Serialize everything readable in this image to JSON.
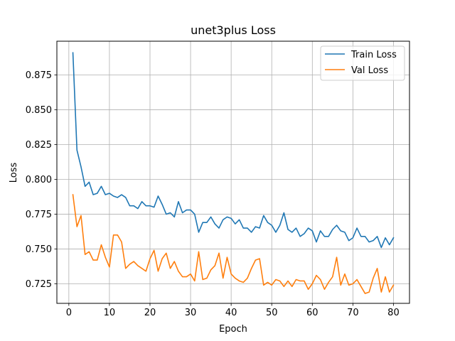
{
  "chart_data": {
    "type": "line",
    "title": "unet3plus Loss",
    "xlabel": "Epoch",
    "ylabel": "Loss",
    "xlim": [
      -2.95,
      83.95
    ],
    "ylim": [
      0.7109,
      0.8993
    ],
    "xticks": [
      0,
      10,
      20,
      30,
      40,
      50,
      60,
      70,
      80
    ],
    "yticks": [
      0.725,
      0.75,
      0.775,
      0.8,
      0.825,
      0.85,
      0.875
    ],
    "ytick_labels": [
      "0.725",
      "0.750",
      "0.775",
      "0.800",
      "0.825",
      "0.850",
      "0.875"
    ],
    "grid": true,
    "legend_position": "top-right",
    "x": [
      1,
      2,
      3,
      4,
      5,
      6,
      7,
      8,
      9,
      10,
      11,
      12,
      13,
      14,
      15,
      16,
      17,
      18,
      19,
      20,
      21,
      22,
      23,
      24,
      25,
      26,
      27,
      28,
      29,
      30,
      31,
      32,
      33,
      34,
      35,
      36,
      37,
      38,
      39,
      40,
      41,
      42,
      43,
      44,
      45,
      46,
      47,
      48,
      49,
      50,
      51,
      52,
      53,
      54,
      55,
      56,
      57,
      58,
      59,
      60,
      61,
      62,
      63,
      64,
      65,
      66,
      67,
      68,
      69,
      70,
      71,
      72,
      73,
      74,
      75,
      76,
      77,
      78,
      79,
      80
    ],
    "series": [
      {
        "name": "Train Loss",
        "color": "#1f77b4",
        "values": [
          0.891,
          0.821,
          0.809,
          0.795,
          0.798,
          0.789,
          0.79,
          0.795,
          0.789,
          0.79,
          0.788,
          0.787,
          0.789,
          0.787,
          0.781,
          0.781,
          0.779,
          0.784,
          0.781,
          0.781,
          0.78,
          0.788,
          0.782,
          0.775,
          0.776,
          0.773,
          0.784,
          0.776,
          0.778,
          0.778,
          0.775,
          0.762,
          0.769,
          0.769,
          0.773,
          0.768,
          0.765,
          0.771,
          0.773,
          0.772,
          0.768,
          0.771,
          0.765,
          0.765,
          0.762,
          0.766,
          0.765,
          0.774,
          0.769,
          0.767,
          0.762,
          0.767,
          0.776,
          0.764,
          0.762,
          0.765,
          0.759,
          0.761,
          0.765,
          0.763,
          0.755,
          0.763,
          0.759,
          0.759,
          0.764,
          0.767,
          0.763,
          0.762,
          0.756,
          0.758,
          0.765,
          0.759,
          0.759,
          0.755,
          0.756,
          0.759,
          0.751,
          0.758,
          0.753,
          0.758
        ]
      },
      {
        "name": "Val Loss",
        "color": "#ff7f0e",
        "values": [
          0.789,
          0.766,
          0.774,
          0.746,
          0.748,
          0.742,
          0.742,
          0.753,
          0.744,
          0.737,
          0.76,
          0.76,
          0.755,
          0.736,
          0.739,
          0.741,
          0.738,
          0.736,
          0.734,
          0.743,
          0.749,
          0.734,
          0.743,
          0.747,
          0.736,
          0.741,
          0.734,
          0.73,
          0.73,
          0.732,
          0.727,
          0.748,
          0.728,
          0.729,
          0.735,
          0.738,
          0.747,
          0.729,
          0.744,
          0.732,
          0.729,
          0.727,
          0.726,
          0.729,
          0.736,
          0.742,
          0.743,
          0.724,
          0.726,
          0.724,
          0.728,
          0.727,
          0.723,
          0.727,
          0.723,
          0.728,
          0.727,
          0.727,
          0.721,
          0.725,
          0.731,
          0.728,
          0.721,
          0.726,
          0.73,
          0.744,
          0.724,
          0.732,
          0.724,
          0.725,
          0.728,
          0.723,
          0.718,
          0.719,
          0.729,
          0.736,
          0.719,
          0.73,
          0.719,
          0.724
        ]
      }
    ]
  }
}
